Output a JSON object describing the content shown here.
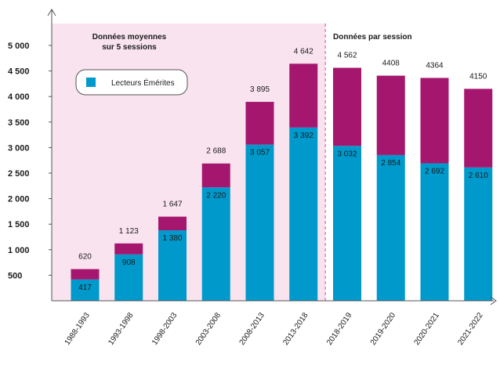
{
  "chart_data": {
    "type": "bar",
    "stacked": true,
    "categories": [
      "1988-1993",
      "1993-1998",
      "1998-2003",
      "2003-2008",
      "2008-2013",
      "2013-2018",
      "2018-2019",
      "2019-2020",
      "2020-2021",
      "2021-2022"
    ],
    "series": [
      {
        "name": "Lecteurs Émérites",
        "values": [
          417,
          908,
          1380,
          2220,
          3057,
          3392,
          3032,
          2854,
          2692,
          2610
        ],
        "color": "#0099cc"
      },
      {
        "values": [
          203,
          215,
          267,
          468,
          838,
          1250,
          1530,
          1554,
          1672,
          1540
        ],
        "color": "#a5176e"
      }
    ],
    "totals": [
      620,
      1123,
      1647,
      2688,
      3895,
      4642,
      4562,
      4408,
      4364,
      4150
    ],
    "total_labels": [
      "620",
      "1 123",
      "1 647",
      "2 688",
      "3 895",
      "4 642",
      "4 562",
      "4408",
      "4364",
      "4150"
    ],
    "inner_labels": [
      "417",
      "908",
      "1 380",
      "2 220",
      "3 057",
      "3 392",
      "3 032",
      "2 854",
      "2 692",
      "2 610"
    ],
    "yticks": [
      "500",
      "1 000",
      "1 500",
      "2 000",
      "2 500",
      "3 000",
      "3 500",
      "4 000",
      "4 500",
      "5 000"
    ],
    "ytick_values": [
      500,
      1000,
      1500,
      2000,
      2500,
      3000,
      3500,
      4000,
      4500,
      5000
    ],
    "ylim": [
      0,
      5300
    ],
    "regions": [
      {
        "title_lines": [
          "Données moyennes",
          "sur 5 sessions"
        ],
        "background": "#f9e3ee",
        "categories": 6
      },
      {
        "title_lines": [
          "Données par session"
        ],
        "background": "#ffffff",
        "categories": 4
      }
    ],
    "divider_color": "#d94c8c",
    "legend": {
      "label": "Lecteurs Émérites",
      "color": "#0099cc"
    },
    "grid": false
  }
}
